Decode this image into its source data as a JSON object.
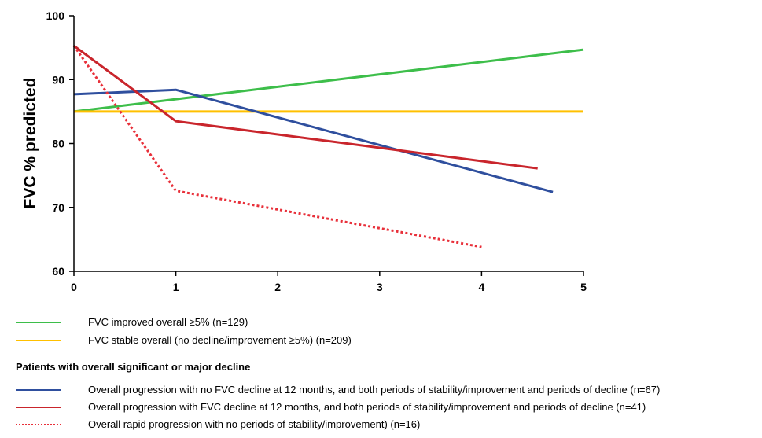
{
  "chart_data": {
    "type": "line",
    "ylabel": "FVC % predicted",
    "xlabel": "",
    "title": "",
    "xlim": [
      0,
      5
    ],
    "ylim": [
      60,
      100
    ],
    "xticks": [
      0,
      1,
      2,
      3,
      4,
      5
    ],
    "yticks": [
      60,
      70,
      80,
      90,
      100
    ],
    "grid": false,
    "legend_position": "bottom",
    "legend_heading": "Patients with overall significant or major decline",
    "series": [
      {
        "name": "FVC improved overall ≥5% (n=129)",
        "color": "#3DBE4A",
        "style": "solid",
        "x": [
          0,
          5
        ],
        "y": [
          85,
          94.7
        ]
      },
      {
        "name": "FVC stable overall (no decline/improvement ≥5%) (n=209)",
        "color": "#FFC000",
        "style": "solid",
        "x": [
          0,
          5
        ],
        "y": [
          85,
          85
        ]
      },
      {
        "name": "Overall progression with no FVC decline at 12 months, and both periods of stability/improvement and periods of decline (n=67)",
        "color": "#2F4F9E",
        "style": "solid",
        "x": [
          0,
          1,
          4.7
        ],
        "y": [
          87.7,
          88.4,
          72.4
        ]
      },
      {
        "name": "Overall progression with FVC decline at 12 months, and both periods of stability/improvement and periods of decline (n=41)",
        "color": "#C9252C",
        "style": "solid",
        "x": [
          0,
          1,
          4.55
        ],
        "y": [
          95.3,
          83.5,
          76.1
        ]
      },
      {
        "name": "Overall rapid progression with no periods of stability/improvement) (n=16)",
        "color": "#E8303A",
        "style": "dotted",
        "x": [
          0,
          1,
          4
        ],
        "y": [
          95.3,
          72.6,
          63.8
        ]
      }
    ]
  }
}
